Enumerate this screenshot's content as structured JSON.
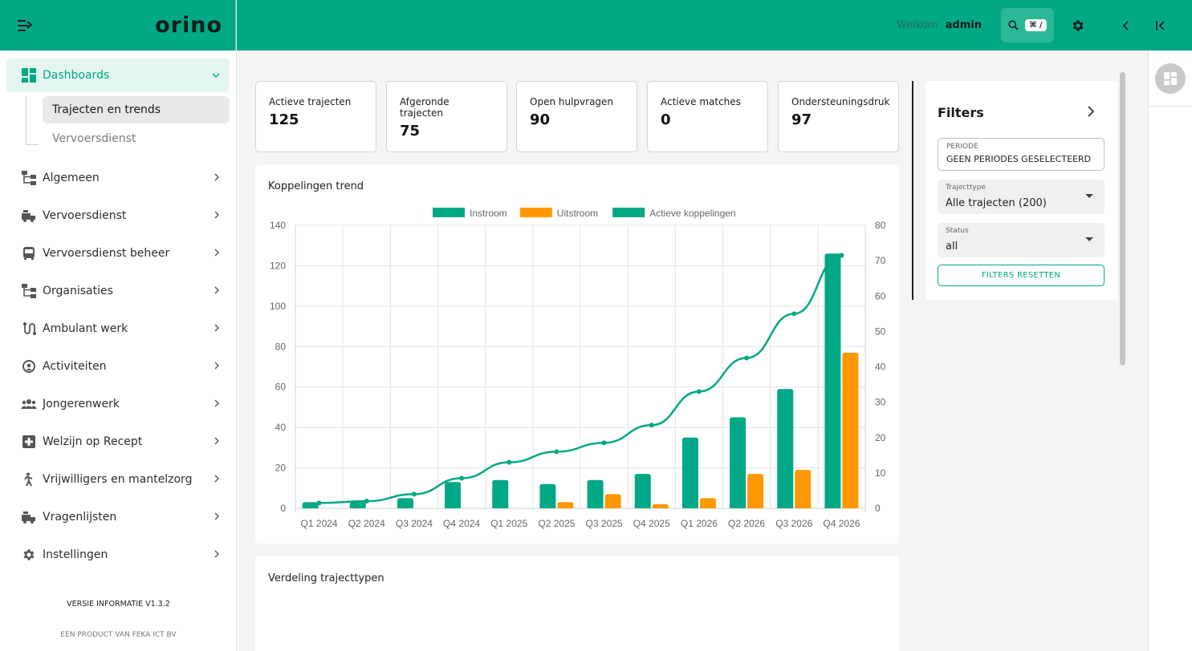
{
  "app": {
    "logo": "orino"
  },
  "header": {
    "welcome_prefix": "Welkom",
    "username": "admin",
    "shortcut": "⌘ /"
  },
  "sidebar": {
    "dashboards_label": "Dashboards",
    "sub_items": [
      "Trajecten en trends",
      "Vervoersdienst"
    ],
    "items": [
      {
        "label": "Algemeen",
        "icon": "org-chart-icon"
      },
      {
        "label": "Vervoersdienst",
        "icon": "truck-icon"
      },
      {
        "label": "Vervoersdienst beheer",
        "icon": "bus-icon"
      },
      {
        "label": "Organisaties",
        "icon": "org-chart-icon"
      },
      {
        "label": "Ambulant werk",
        "icon": "route-icon"
      },
      {
        "label": "Activiteiten",
        "icon": "activity-icon"
      },
      {
        "label": "Jongerenwerk",
        "icon": "people-icon"
      },
      {
        "label": "Welzijn op Recept",
        "icon": "medical-cross-icon"
      },
      {
        "label": "Vrijwilligers en mantelzorg",
        "icon": "volunteer-icon"
      },
      {
        "label": "Vragenlijsten",
        "icon": "truck-icon"
      },
      {
        "label": "Instellingen",
        "icon": "gear-icon"
      }
    ],
    "version": "VERSIE INFORMATIE V1.3.2",
    "product": "EEN PRODUCT VAN FEKA ICT BV"
  },
  "kpis": [
    {
      "label": "Actieve trajecten",
      "value": "125"
    },
    {
      "label": "Afgeronde trajecten",
      "value": "75"
    },
    {
      "label": "Open hulpvragen",
      "value": "90"
    },
    {
      "label": "Actieve matches",
      "value": "0"
    },
    {
      "label": "Ondersteuningsdruk",
      "value": "97"
    }
  ],
  "chart_card": {
    "title": "Koppelingen trend"
  },
  "second_card": {
    "title": "Verdeling trajecttypen"
  },
  "chart_data": {
    "type": "bar",
    "categories": [
      "Q1 2024",
      "Q2 2024",
      "Q3 2024",
      "Q4 2024",
      "Q1 2025",
      "Q2 2025",
      "Q3 2025",
      "Q4 2025",
      "Q1 2026",
      "Q2 2026",
      "Q3 2026",
      "Q4 2026"
    ],
    "series": [
      {
        "name": "Instroom",
        "type": "bar",
        "axis": "left",
        "color": "#00a886",
        "values": [
          3,
          3,
          5,
          13,
          14,
          12,
          14,
          17,
          35,
          45,
          59,
          126
        ]
      },
      {
        "name": "Uitstroom",
        "type": "bar",
        "axis": "left",
        "color": "#ff9800",
        "values": [
          0,
          0,
          0,
          0,
          0,
          3,
          7,
          2,
          5,
          17,
          19,
          77
        ]
      },
      {
        "name": "Actieve koppelingen",
        "type": "line",
        "axis": "right",
        "color": "#00a886",
        "values": [
          1.5,
          2,
          4,
          8.5,
          13,
          16,
          18.5,
          23.5,
          33,
          42.5,
          55,
          71.5
        ]
      }
    ],
    "ylim_left": [
      0,
      140
    ],
    "yticks_left": [
      0,
      20,
      40,
      60,
      80,
      100,
      120,
      140
    ],
    "ylim_right": [
      0,
      80
    ],
    "yticks_right": [
      0,
      10,
      20,
      30,
      40,
      50,
      60,
      70,
      80
    ],
    "grid": true,
    "legend": "top-center"
  },
  "filters": {
    "title": "Filters",
    "periode_label": "PERIODE",
    "periode_value": "GEEN PERIODES GESELECTEERD",
    "trajecttype_label": "Trajecttype",
    "trajecttype_value": "Alle trajecten (200)",
    "status_label": "Status",
    "status_value": "all",
    "reset_label": "FILTERS RESETTEN"
  },
  "colors": {
    "brand": "#00a886",
    "accent_orange": "#ff9800"
  }
}
